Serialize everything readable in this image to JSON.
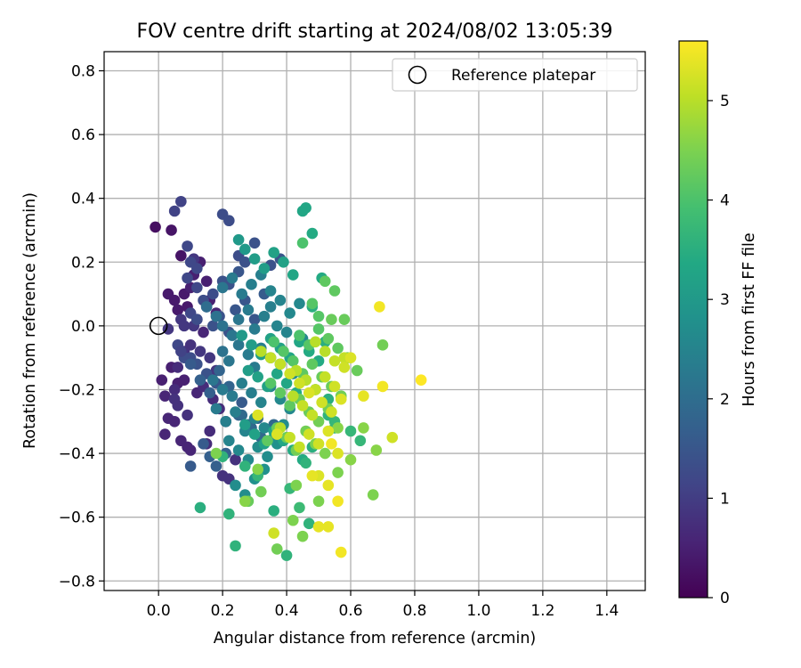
{
  "chart_data": {
    "type": "scatter",
    "title": "FOV centre drift starting at 2024/08/02 13:05:39",
    "xlabel": "Angular distance from reference (arcmin)",
    "ylabel": "Rotation from reference (arcmin)",
    "xlim": [
      -0.17,
      1.52
    ],
    "ylim": [
      -0.83,
      0.86
    ],
    "xticks": [
      0.0,
      0.2,
      0.4,
      0.6,
      0.8,
      1.0,
      1.2,
      1.4
    ],
    "xtick_labels": [
      "0.0",
      "0.2",
      "0.4",
      "0.6",
      "0.8",
      "1.0",
      "1.2",
      "1.4"
    ],
    "yticks": [
      -0.8,
      -0.6,
      -0.4,
      -0.2,
      0.0,
      0.2,
      0.4,
      0.6,
      0.8
    ],
    "ytick_labels": [
      "−0.8",
      "−0.6",
      "−0.4",
      "−0.2",
      "0.0",
      "0.2",
      "0.4",
      "0.6",
      "0.8"
    ],
    "grid": true,
    "legend": {
      "placement": "upper-right",
      "entries": [
        "Reference platepar"
      ]
    },
    "reference_point": {
      "x": 0.0,
      "y": 0.0,
      "marker": "open-circle"
    },
    "colorbar": {
      "label": "Hours from first FF file",
      "range": [
        0,
        5.6
      ],
      "ticks": [
        0,
        1,
        2,
        3,
        4,
        5
      ],
      "tick_labels": [
        "0",
        "1",
        "2",
        "3",
        "4",
        "5"
      ],
      "colormap": "viridis"
    },
    "series": [
      {
        "x": [
          -0.01,
          0.04,
          0.07,
          0.03,
          0.05,
          0.06,
          0.08,
          0.1,
          0.11,
          0.13,
          0.15,
          0.09,
          0.12,
          0.16,
          0.18,
          0.14,
          0.04,
          0.06,
          0.08,
          0.03,
          0.05,
          0.12,
          0.14,
          0.17,
          0.19,
          0.21,
          0.1,
          0.07,
          0.09,
          0.02,
          0.05,
          0.06,
          0.15,
          0.16,
          0.1,
          0.08,
          0.2,
          0.22,
          0.24,
          0.01,
          0.02,
          0.06,
          0.09,
          0.03,
          0.11,
          0.13,
          0.16,
          0.18,
          0.07,
          0.08,
          0.05,
          0.11
        ],
        "y": [
          0.31,
          0.3,
          0.22,
          0.1,
          0.08,
          0.05,
          0.1,
          0.12,
          0.16,
          0.2,
          0.14,
          0.06,
          0.02,
          0.08,
          0.04,
          -0.02,
          -0.13,
          -0.18,
          -0.17,
          -0.29,
          -0.3,
          -0.21,
          -0.19,
          -0.23,
          -0.26,
          -0.3,
          -0.39,
          -0.36,
          -0.38,
          -0.34,
          -0.2,
          -0.13,
          -0.37,
          -0.33,
          -0.06,
          -0.08,
          -0.47,
          -0.48,
          -0.42,
          -0.17,
          -0.22,
          -0.25,
          -0.28,
          -0.01,
          0.0,
          -0.08,
          -0.1,
          -0.14,
          0.02,
          0.0,
          -0.23,
          0.21
        ],
        "hours": [
          0.2,
          0.3,
          0.3,
          0.4,
          0.4,
          0.4,
          0.4,
          0.5,
          0.5,
          0.5,
          0.5,
          0.4,
          0.5,
          0.5,
          0.6,
          0.6,
          0.5,
          0.5,
          0.5,
          0.6,
          0.6,
          0.6,
          0.7,
          0.7,
          0.7,
          0.7,
          0.6,
          0.6,
          0.6,
          0.6,
          0.7,
          0.7,
          0.7,
          0.7,
          0.8,
          0.8,
          0.8,
          0.8,
          0.8,
          0.5,
          0.6,
          0.8,
          0.8,
          0.9,
          0.9,
          0.9,
          0.9,
          0.9,
          0.9,
          0.9,
          0.8,
          0.9
        ]
      },
      {
        "x": [
          0.05,
          0.07,
          0.09,
          0.1,
          0.12,
          0.2,
          0.22,
          0.25,
          0.27,
          0.3,
          0.35,
          0.38,
          0.1,
          0.12,
          0.15,
          0.17,
          0.19,
          0.22,
          0.24,
          0.27,
          0.3,
          0.33,
          0.1,
          0.12,
          0.15,
          0.18,
          0.2,
          0.23,
          0.26,
          0.06,
          0.08,
          0.1,
          0.14,
          0.16,
          0.18,
          0.21,
          0.25,
          0.28,
          0.31,
          0.07,
          0.09,
          0.12,
          0.14,
          0.17,
          0.2,
          0.22,
          0.25,
          0.1,
          0.13,
          0.16,
          0.19,
          0.22,
          0.26,
          0.29,
          0.32,
          0.36
        ],
        "y": [
          0.36,
          0.39,
          0.25,
          0.2,
          0.18,
          0.35,
          0.33,
          0.22,
          0.2,
          0.26,
          0.19,
          0.21,
          0.04,
          0.02,
          0.06,
          0.0,
          0.03,
          -0.02,
          0.05,
          0.08,
          0.02,
          0.1,
          -0.1,
          -0.12,
          -0.15,
          -0.18,
          -0.2,
          -0.22,
          -0.24,
          -0.06,
          -0.1,
          -0.44,
          -0.37,
          -0.41,
          -0.44,
          -0.4,
          -0.28,
          -0.31,
          -0.29,
          -0.08,
          0.15,
          0.12,
          0.08,
          0.1,
          0.14,
          0.13,
          0.17,
          -0.12,
          -0.17,
          -0.21,
          -0.14,
          -0.19,
          -0.28,
          -0.32,
          -0.35,
          -0.31
        ],
        "hours": [
          1.1,
          1.1,
          1.2,
          1.2,
          1.2,
          1.3,
          1.3,
          1.3,
          1.4,
          1.4,
          1.4,
          1.5,
          1.2,
          1.3,
          1.3,
          1.4,
          1.4,
          1.4,
          1.5,
          1.5,
          1.5,
          1.6,
          1.3,
          1.4,
          1.4,
          1.5,
          1.5,
          1.6,
          1.6,
          1.2,
          1.3,
          1.6,
          1.6,
          1.7,
          1.7,
          1.7,
          1.8,
          1.8,
          1.8,
          1.1,
          1.2,
          1.2,
          1.3,
          1.3,
          1.4,
          1.4,
          1.5,
          1.6,
          1.7,
          1.7,
          1.8,
          1.8,
          1.9,
          1.9,
          1.9,
          1.9
        ]
      },
      {
        "x": [
          0.15,
          0.18,
          0.2,
          0.23,
          0.25,
          0.28,
          0.3,
          0.33,
          0.35,
          0.37,
          0.4,
          0.2,
          0.22,
          0.25,
          0.28,
          0.3,
          0.32,
          0.35,
          0.38,
          0.42,
          0.45,
          0.17,
          0.2,
          0.23,
          0.26,
          0.29,
          0.32,
          0.35,
          0.38,
          0.41,
          0.18,
          0.21,
          0.24,
          0.27,
          0.3,
          0.33,
          0.36,
          0.39,
          0.22,
          0.25,
          0.28,
          0.31,
          0.34,
          0.37,
          0.2,
          0.23,
          0.26,
          0.29,
          0.32,
          0.35,
          0.38,
          0.41,
          0.44,
          0.24,
          0.27,
          0.3,
          0.33
        ],
        "y": [
          0.06,
          0.03,
          0.0,
          -0.03,
          0.02,
          0.05,
          -0.01,
          0.03,
          0.06,
          0.0,
          -0.02,
          -0.08,
          -0.11,
          -0.06,
          -0.09,
          -0.13,
          -0.07,
          -0.1,
          -0.12,
          -0.15,
          -0.04,
          -0.17,
          -0.2,
          -0.22,
          -0.18,
          -0.21,
          -0.24,
          -0.19,
          -0.23,
          -0.26,
          -0.26,
          -0.3,
          -0.27,
          -0.33,
          -0.29,
          -0.32,
          -0.35,
          -0.31,
          -0.36,
          -0.39,
          -0.42,
          -0.38,
          -0.41,
          -0.37,
          0.12,
          0.15,
          0.1,
          0.13,
          0.16,
          0.11,
          0.08,
          0.04,
          0.07,
          -0.5,
          -0.53,
          -0.48,
          -0.45
        ],
        "hours": [
          2.0,
          2.1,
          2.1,
          2.2,
          2.2,
          2.3,
          2.3,
          2.4,
          2.4,
          2.5,
          2.5,
          2.1,
          2.2,
          2.2,
          2.3,
          2.3,
          2.4,
          2.4,
          2.5,
          2.6,
          2.6,
          2.2,
          2.3,
          2.3,
          2.4,
          2.4,
          2.5,
          2.5,
          2.6,
          2.6,
          2.3,
          2.4,
          2.4,
          2.5,
          2.5,
          2.6,
          2.6,
          2.7,
          2.5,
          2.6,
          2.6,
          2.7,
          2.7,
          2.8,
          2.2,
          2.3,
          2.3,
          2.4,
          2.4,
          2.5,
          2.5,
          2.6,
          2.6,
          2.7,
          2.7,
          2.8,
          2.8
        ]
      },
      {
        "x": [
          0.25,
          0.27,
          0.3,
          0.33,
          0.36,
          0.39,
          0.42,
          0.45,
          0.48,
          0.51,
          0.26,
          0.29,
          0.32,
          0.35,
          0.38,
          0.41,
          0.44,
          0.47,
          0.5,
          0.28,
          0.31,
          0.34,
          0.37,
          0.4,
          0.43,
          0.46,
          0.49,
          0.53,
          0.27,
          0.3,
          0.33,
          0.36,
          0.39,
          0.42,
          0.45,
          0.48,
          0.13,
          0.22,
          0.24,
          0.36,
          0.4,
          0.47,
          0.46,
          0.46,
          0.48,
          0.53,
          0.55,
          0.52,
          0.55,
          0.57,
          0.6,
          0.63,
          0.2,
          0.27,
          0.31,
          0.41,
          0.44
        ],
        "y": [
          0.27,
          0.24,
          0.21,
          0.18,
          0.23,
          0.2,
          0.16,
          0.36,
          0.29,
          0.15,
          -0.03,
          -0.06,
          -0.09,
          -0.04,
          -0.07,
          -0.1,
          -0.05,
          -0.08,
          -0.11,
          -0.14,
          -0.16,
          -0.19,
          -0.15,
          -0.18,
          -0.21,
          -0.17,
          -0.2,
          -0.23,
          -0.31,
          -0.34,
          -0.37,
          -0.33,
          -0.36,
          -0.39,
          -0.42,
          -0.38,
          -0.57,
          -0.59,
          -0.69,
          -0.58,
          -0.72,
          -0.62,
          -0.43,
          0.37,
          0.06,
          -0.28,
          -0.32,
          -0.05,
          -0.3,
          -0.22,
          -0.33,
          -0.36,
          -0.41,
          -0.44,
          -0.47,
          -0.51,
          -0.57
        ],
        "hours": [
          3.0,
          3.0,
          3.1,
          3.1,
          3.2,
          3.2,
          3.3,
          3.3,
          3.4,
          3.4,
          3.0,
          3.1,
          3.1,
          3.2,
          3.2,
          3.3,
          3.3,
          3.4,
          3.4,
          3.1,
          3.2,
          3.2,
          3.3,
          3.3,
          3.4,
          3.4,
          3.5,
          3.5,
          3.1,
          3.2,
          3.2,
          3.3,
          3.3,
          3.4,
          3.4,
          3.5,
          3.5,
          3.6,
          3.6,
          3.5,
          3.6,
          3.6,
          3.6,
          3.3,
          3.5,
          3.6,
          3.6,
          3.5,
          3.7,
          3.7,
          3.7,
          3.7,
          3.6,
          3.6,
          3.7,
          3.7,
          3.8
        ]
      },
      {
        "x": [
          0.45,
          0.48,
          0.5,
          0.52,
          0.55,
          0.58,
          0.44,
          0.47,
          0.5,
          0.53,
          0.56,
          0.59,
          0.62,
          0.36,
          0.39,
          0.42,
          0.45,
          0.48,
          0.51,
          0.54,
          0.57,
          0.35,
          0.38,
          0.41,
          0.44,
          0.47,
          0.5,
          0.53,
          0.34,
          0.37,
          0.4,
          0.43,
          0.46,
          0.49,
          0.52,
          0.28,
          0.32,
          0.37,
          0.42,
          0.45,
          0.56,
          0.6,
          0.64,
          0.67,
          0.7,
          0.68,
          0.54,
          0.56,
          0.5,
          0.43,
          0.31,
          0.18,
          0.27
        ],
        "y": [
          0.26,
          0.07,
          0.03,
          0.14,
          0.11,
          0.02,
          -0.03,
          -0.06,
          -0.01,
          -0.04,
          -0.07,
          -0.1,
          -0.14,
          -0.05,
          -0.08,
          -0.11,
          -0.15,
          -0.12,
          -0.16,
          -0.19,
          -0.22,
          -0.18,
          -0.21,
          -0.25,
          -0.23,
          -0.27,
          -0.3,
          -0.26,
          -0.36,
          -0.32,
          -0.35,
          -0.39,
          -0.33,
          -0.37,
          -0.4,
          -0.55,
          -0.52,
          -0.7,
          -0.61,
          -0.66,
          -0.46,
          -0.42,
          -0.32,
          -0.53,
          -0.06,
          -0.39,
          0.02,
          -0.32,
          -0.55,
          -0.5,
          -0.45,
          -0.4,
          -0.55
        ],
        "hours": [
          4.0,
          4.1,
          4.1,
          4.2,
          4.2,
          4.3,
          4.0,
          4.1,
          4.1,
          4.2,
          4.2,
          4.3,
          4.3,
          4.0,
          4.1,
          4.1,
          4.2,
          4.2,
          4.3,
          4.3,
          4.4,
          4.1,
          4.2,
          4.2,
          4.3,
          4.3,
          4.4,
          4.4,
          4.2,
          4.3,
          4.3,
          4.4,
          4.4,
          4.5,
          4.5,
          4.3,
          4.4,
          4.4,
          4.5,
          4.5,
          4.5,
          4.6,
          4.6,
          4.5,
          4.4,
          4.6,
          4.3,
          4.6,
          4.5,
          4.5,
          4.6,
          4.5,
          4.6
        ]
      },
      {
        "x": [
          0.49,
          0.52,
          0.55,
          0.58,
          0.43,
          0.46,
          0.49,
          0.52,
          0.55,
          0.58,
          0.42,
          0.45,
          0.48,
          0.51,
          0.54,
          0.57,
          0.38,
          0.41,
          0.44,
          0.47,
          0.5,
          0.53,
          0.56,
          0.32,
          0.35,
          0.38,
          0.41,
          0.44,
          0.47,
          0.5,
          0.53,
          0.36,
          0.5,
          0.53,
          0.57,
          0.48,
          0.6,
          0.54,
          0.56,
          0.64,
          0.69,
          0.7,
          0.82,
          0.73,
          0.31,
          0.37
        ],
        "y": [
          -0.05,
          -0.08,
          -0.11,
          -0.1,
          -0.14,
          -0.17,
          -0.2,
          -0.16,
          -0.19,
          -0.13,
          -0.22,
          -0.25,
          -0.28,
          -0.24,
          -0.27,
          -0.23,
          -0.32,
          -0.35,
          -0.38,
          -0.34,
          -0.37,
          -0.33,
          -0.4,
          -0.08,
          -0.1,
          -0.12,
          -0.15,
          -0.18,
          -0.21,
          -0.47,
          -0.5,
          -0.65,
          -0.63,
          -0.63,
          -0.71,
          -0.47,
          -0.1,
          -0.37,
          -0.55,
          -0.22,
          0.06,
          -0.19,
          -0.17,
          -0.35,
          -0.28,
          -0.34
        ],
        "hours": [
          5.0,
          5.0,
          5.1,
          5.1,
          5.0,
          5.0,
          5.1,
          5.1,
          5.2,
          5.2,
          5.0,
          5.1,
          5.1,
          5.2,
          5.2,
          5.3,
          5.0,
          5.1,
          5.1,
          5.2,
          5.2,
          5.3,
          5.3,
          5.0,
          5.1,
          5.1,
          5.2,
          5.2,
          5.3,
          5.3,
          5.4,
          5.2,
          5.4,
          5.4,
          5.5,
          5.4,
          5.3,
          5.5,
          5.5,
          5.4,
          5.5,
          5.5,
          5.6,
          5.2,
          5.3,
          5.3
        ]
      }
    ]
  }
}
